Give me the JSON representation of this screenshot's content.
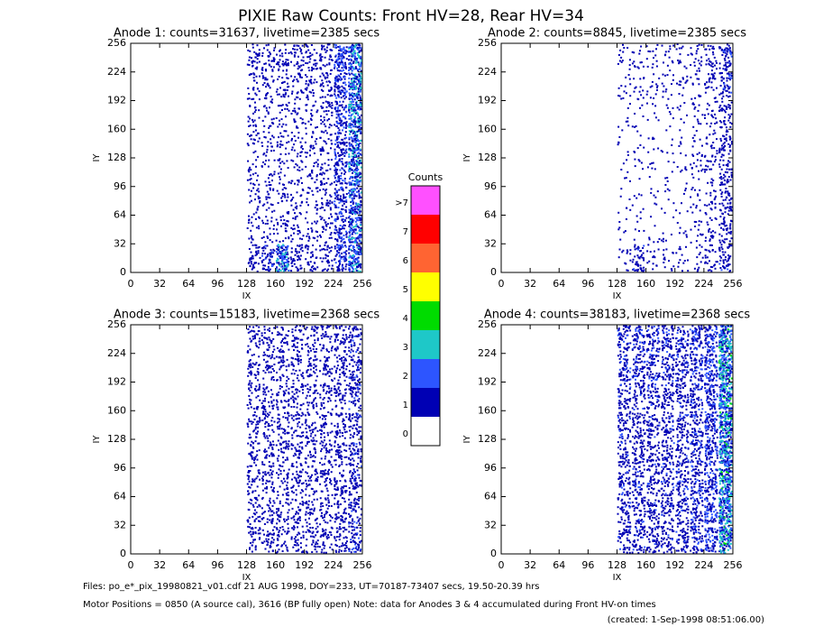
{
  "title": "PIXIE Raw Counts:  Front HV=28, Rear HV=34",
  "colorbar": {
    "title": "Counts",
    "labels": [
      "0",
      "1",
      "2",
      "3",
      "4",
      "5",
      "6",
      "7",
      ">7"
    ],
    "colors": [
      "#ffffff",
      "#0000b4",
      "#2d55ff",
      "#1ec8c8",
      "#00dc00",
      "#ffff00",
      "#ff6432",
      "#ff0000",
      "#ff50ff"
    ]
  },
  "footer": [
    "Files: po_e*_pix_19980821_v01.cdf    21 AUG 1998, DOY=233, UT=70187-73407 secs, 19.50-20.39 hrs",
    "Motor Positions = 0850 (A source cal), 3616 (BP fully open)    Note: data for Anodes 3 & 4 accumulated during Front HV-on times",
    "(created:  1-Sep-1998 08:51:06.00)"
  ],
  "chart_data": [
    {
      "type": "heatmap",
      "title": "Anode 1: counts=31637, livetime=2385 secs",
      "xlabel": "IX",
      "ylabel": "IY",
      "xlim": [
        0,
        256
      ],
      "ylim": [
        0,
        256
      ],
      "xticks": [
        0,
        32,
        64,
        96,
        128,
        160,
        192,
        224,
        256
      ],
      "yticks": [
        0,
        32,
        64,
        96,
        128,
        160,
        192,
        224,
        256
      ],
      "x_bins": [
        128,
        144,
        160,
        176,
        192,
        208,
        224,
        240,
        256
      ],
      "y_bins": [
        0,
        32,
        64,
        96,
        128,
        160,
        192,
        224,
        256
      ],
      "values": [
        [
          0.6,
          0.8,
          1.6,
          0.6,
          0.5,
          0.5,
          1.0,
          1.6
        ],
        [
          0.3,
          0.3,
          0.4,
          0.3,
          0.3,
          0.4,
          0.9,
          1.5
        ],
        [
          0.3,
          0.3,
          0.3,
          0.3,
          0.3,
          0.4,
          0.9,
          1.5
        ],
        [
          0.3,
          0.3,
          0.3,
          0.3,
          0.3,
          0.4,
          0.9,
          1.6
        ],
        [
          0.3,
          0.3,
          0.3,
          0.3,
          0.3,
          0.4,
          0.9,
          1.6
        ],
        [
          0.3,
          0.3,
          0.3,
          0.3,
          0.3,
          0.5,
          1.0,
          1.7
        ],
        [
          0.4,
          0.4,
          0.4,
          0.4,
          0.4,
          0.5,
          1.1,
          1.8
        ],
        [
          0.5,
          0.5,
          0.5,
          0.5,
          0.5,
          0.6,
          1.2,
          1.8
        ]
      ]
    },
    {
      "type": "heatmap",
      "title": "Anode 2: counts=8845, livetime=2385 secs",
      "xlabel": "IX",
      "ylabel": "IY",
      "xlim": [
        0,
        256
      ],
      "ylim": [
        0,
        256
      ],
      "xticks": [
        0,
        32,
        64,
        96,
        128,
        160,
        192,
        224,
        256
      ],
      "yticks": [
        0,
        32,
        64,
        96,
        128,
        160,
        192,
        224,
        256
      ],
      "x_bins": [
        128,
        144,
        160,
        176,
        192,
        208,
        224,
        240,
        256
      ],
      "y_bins": [
        0,
        32,
        64,
        96,
        128,
        160,
        192,
        224,
        256
      ],
      "values": [
        [
          0.2,
          0.7,
          0.2,
          0.2,
          0.2,
          0.2,
          0.4,
          0.7
        ],
        [
          0.1,
          0.1,
          0.1,
          0.1,
          0.1,
          0.2,
          0.3,
          0.6
        ],
        [
          0.1,
          0.1,
          0.1,
          0.1,
          0.1,
          0.2,
          0.3,
          0.6
        ],
        [
          0.1,
          0.1,
          0.1,
          0.1,
          0.1,
          0.2,
          0.3,
          0.6
        ],
        [
          0.1,
          0.1,
          0.1,
          0.1,
          0.1,
          0.2,
          0.3,
          0.6
        ],
        [
          0.1,
          0.1,
          0.1,
          0.1,
          0.1,
          0.2,
          0.3,
          0.6
        ],
        [
          0.2,
          0.2,
          0.2,
          0.2,
          0.2,
          0.2,
          0.4,
          0.7
        ],
        [
          0.2,
          0.2,
          0.2,
          0.2,
          0.2,
          0.3,
          0.4,
          0.8
        ]
      ]
    },
    {
      "type": "heatmap",
      "title": "Anode 3: counts=15183, livetime=2368 secs",
      "xlabel": "IX",
      "ylabel": "IY",
      "xlim": [
        0,
        256
      ],
      "ylim": [
        0,
        256
      ],
      "xticks": [
        0,
        32,
        64,
        96,
        128,
        160,
        192,
        224,
        256
      ],
      "yticks": [
        0,
        32,
        64,
        96,
        128,
        160,
        192,
        224,
        256
      ],
      "x_bins": [
        128,
        144,
        160,
        176,
        192,
        208,
        224,
        240,
        256
      ],
      "y_bins": [
        0,
        32,
        64,
        96,
        128,
        160,
        192,
        224,
        256
      ],
      "values": [
        [
          0.5,
          0.5,
          0.5,
          0.5,
          0.5,
          0.5,
          0.6,
          0.8
        ],
        [
          0.5,
          0.5,
          0.5,
          0.5,
          0.5,
          0.5,
          0.6,
          0.7
        ],
        [
          0.5,
          0.5,
          0.5,
          0.5,
          0.5,
          0.5,
          0.6,
          0.7
        ],
        [
          0.5,
          0.5,
          0.5,
          0.5,
          0.5,
          0.5,
          0.6,
          0.7
        ],
        [
          0.5,
          0.5,
          0.5,
          0.5,
          0.5,
          0.5,
          0.6,
          0.7
        ],
        [
          0.5,
          0.5,
          0.5,
          0.5,
          0.5,
          0.5,
          0.6,
          0.7
        ],
        [
          0.5,
          0.5,
          0.5,
          0.5,
          0.5,
          0.5,
          0.6,
          0.7
        ],
        [
          0.5,
          0.5,
          0.5,
          0.5,
          0.5,
          0.5,
          0.6,
          0.7
        ]
      ]
    },
    {
      "type": "heatmap",
      "title": "Anode 4: counts=38183, livetime=2368 secs",
      "xlabel": "IX",
      "ylabel": "IY",
      "xlim": [
        0,
        256
      ],
      "ylim": [
        0,
        256
      ],
      "xticks": [
        0,
        32,
        64,
        96,
        128,
        160,
        192,
        224,
        256
      ],
      "yticks": [
        0,
        32,
        64,
        96,
        128,
        160,
        192,
        224,
        256
      ],
      "x_bins": [
        128,
        144,
        160,
        176,
        192,
        208,
        224,
        240,
        256
      ],
      "y_bins": [
        0,
        32,
        64,
        96,
        128,
        160,
        192,
        224,
        256
      ],
      "values": [
        [
          0.7,
          0.7,
          0.7,
          0.7,
          0.7,
          0.8,
          1.0,
          2.0
        ],
        [
          0.7,
          0.7,
          0.7,
          0.7,
          0.7,
          0.8,
          1.0,
          2.0
        ],
        [
          0.7,
          0.7,
          0.7,
          0.7,
          0.7,
          0.8,
          1.0,
          2.0
        ],
        [
          0.7,
          0.7,
          0.7,
          0.7,
          0.7,
          0.8,
          1.0,
          2.0
        ],
        [
          0.7,
          0.7,
          0.7,
          0.7,
          0.7,
          0.8,
          1.0,
          2.0
        ],
        [
          0.7,
          0.7,
          0.7,
          0.7,
          0.7,
          0.8,
          1.0,
          2.0
        ],
        [
          0.8,
          0.8,
          0.8,
          0.8,
          0.8,
          0.9,
          1.1,
          2.0
        ],
        [
          0.8,
          0.8,
          0.8,
          0.8,
          0.8,
          0.9,
          1.1,
          2.0
        ]
      ]
    }
  ]
}
